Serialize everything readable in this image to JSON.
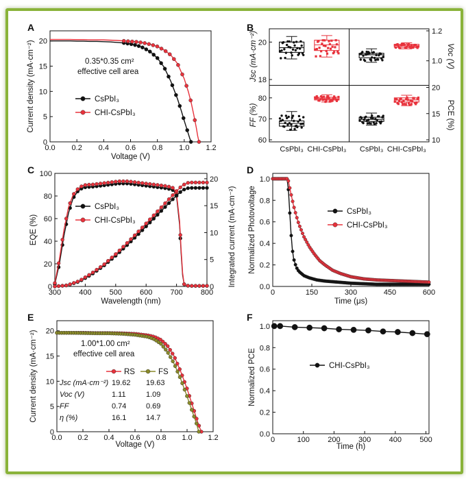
{
  "colors": {
    "black": "#111111",
    "red": "#e8323c",
    "olive": "#8a8a2a",
    "blue": "#2233aa",
    "frame": "#8ab33a"
  },
  "chart_data": [
    {
      "panel": "A",
      "type": "line",
      "xlabel": "Voltage (V)",
      "ylabel": "Current density (mA·cm⁻²)",
      "xlim": [
        0,
        1.2
      ],
      "ylim": [
        0,
        22
      ],
      "xticks": [
        "0.0",
        "0.2",
        "0.4",
        "0.6",
        "0.8",
        "1.0",
        "1.2"
      ],
      "yticks": [
        "0",
        "5",
        "10",
        "15",
        "20"
      ],
      "annotation": [
        "0.35*0.35 cm²",
        "effective cell area"
      ],
      "series": [
        {
          "name": "CsPbI₃",
          "color": "#111111",
          "x": [
            0,
            0.05,
            0.1,
            0.15,
            0.2,
            0.25,
            0.3,
            0.35,
            0.4,
            0.45,
            0.5,
            0.55,
            0.6,
            0.65,
            0.7,
            0.75,
            0.8,
            0.85,
            0.9,
            0.95,
            0.98,
            1.0,
            1.02,
            1.04,
            1.05
          ],
          "y": [
            20.0,
            20.0,
            20.0,
            20.0,
            19.95,
            19.95,
            19.9,
            19.9,
            19.85,
            19.8,
            19.7,
            19.6,
            19.4,
            19.1,
            18.6,
            17.8,
            16.6,
            14.8,
            12.0,
            8.5,
            6.0,
            4.2,
            2.5,
            0.8,
            0
          ]
        },
        {
          "name": "CHI-CsPbI₃",
          "color": "#e8323c",
          "x": [
            0,
            0.05,
            0.1,
            0.15,
            0.2,
            0.25,
            0.3,
            0.35,
            0.4,
            0.45,
            0.5,
            0.55,
            0.6,
            0.65,
            0.7,
            0.75,
            0.8,
            0.85,
            0.9,
            0.95,
            1.0,
            1.03,
            1.05,
            1.07,
            1.09,
            1.1,
            1.11
          ],
          "y": [
            20.3,
            20.3,
            20.3,
            20.3,
            20.25,
            20.25,
            20.2,
            20.2,
            20.2,
            20.15,
            20.1,
            20.0,
            19.9,
            19.8,
            19.6,
            19.3,
            18.9,
            18.2,
            17.2,
            15.5,
            12.5,
            10.0,
            8.0,
            5.5,
            2.8,
            1.2,
            0
          ]
        }
      ]
    },
    {
      "panel": "B",
      "type": "box",
      "groups": [
        "CsPbI₃",
        "CHI-CsPbI₃",
        "CsPbI₃",
        "CHI-CsPbI₃"
      ],
      "subplots": [
        {
          "id": "Jsc",
          "label": "Jsc (mA·cm⁻²)",
          "side": "left",
          "range": [
            17.8,
            20.6
          ],
          "ticks": [
            "18",
            "20"
          ],
          "boxes": [
            {
              "group": "CsPbI₃",
              "min": 19.1,
              "q1": 19.45,
              "median": 19.7,
              "q3": 20.0,
              "max": 20.3
            },
            {
              "group": "CHI-CsPbI₃",
              "min": 19.2,
              "q1": 19.55,
              "median": 19.85,
              "q3": 20.1,
              "max": 20.35
            }
          ]
        },
        {
          "id": "Voc",
          "label": "Voc (V)",
          "side": "right",
          "range": [
            0.85,
            1.2
          ],
          "ticks": [
            "1.0",
            "1.2"
          ],
          "boxes": [
            {
              "group": "CsPbI₃",
              "min": 0.99,
              "q1": 1.02,
              "median": 1.04,
              "q3": 1.05,
              "max": 1.08
            },
            {
              "group": "CHI-CsPbI₃",
              "min": 1.08,
              "q1": 1.09,
              "median": 1.1,
              "q3": 1.11,
              "max": 1.12
            }
          ]
        },
        {
          "id": "FF",
          "label": "FF (%)",
          "side": "left",
          "range": [
            60,
            85
          ],
          "ticks": [
            "60",
            "70",
            "80"
          ],
          "boxes": [
            {
              "group": "CsPbI₃",
              "min": 64.5,
              "q1": 66.5,
              "median": 67.8,
              "q3": 69.0,
              "max": 73.5
            },
            {
              "group": "CHI-CsPbI₃",
              "min": 78.0,
              "q1": 79.0,
              "median": 79.6,
              "q3": 80.3,
              "max": 81.5
            }
          ]
        },
        {
          "id": "PCE",
          "label": "PCE (%)",
          "side": "right",
          "range": [
            10,
            20
          ],
          "ticks": [
            "10",
            "15",
            "20"
          ],
          "boxes": [
            {
              "group": "CsPbI₃",
              "min": 12.8,
              "q1": 13.5,
              "median": 13.9,
              "q3": 14.3,
              "max": 15.1
            },
            {
              "group": "CHI-CsPbI₃",
              "min": 16.5,
              "q1": 17.2,
              "median": 17.6,
              "q3": 18.0,
              "max": 18.5
            }
          ]
        }
      ]
    },
    {
      "panel": "C",
      "type": "line",
      "xlabel": "Wavelength (nm)",
      "ylabel": "EQE (%)",
      "ylabel_right": "Integrated current (mA·cm⁻²)",
      "xlim": [
        300,
        800
      ],
      "ylim": [
        0,
        100
      ],
      "ylim_right": [
        0,
        21
      ],
      "xticks": [
        "300",
        "400",
        "500",
        "600",
        "700",
        "800"
      ],
      "yticks": [
        "0",
        "20",
        "40",
        "60",
        "80",
        "100"
      ],
      "yticks_right": [
        "0",
        "5",
        "10",
        "15",
        "20"
      ],
      "series": [
        {
          "name": "CsPbI₃",
          "color": "#111111",
          "axis": "left",
          "x": [
            300,
            315,
            330,
            345,
            360,
            375,
            390,
            405,
            420,
            450,
            480,
            510,
            540,
            570,
            600,
            630,
            660,
            680,
            690,
            700,
            710,
            715,
            720,
            725,
            730,
            740,
            760,
            800
          ],
          "y": [
            2,
            20,
            45,
            65,
            78,
            84,
            87,
            88,
            88,
            89,
            90,
            91,
            91,
            90,
            89,
            88,
            87,
            86,
            85,
            80,
            55,
            30,
            10,
            2,
            1,
            0.5,
            0.5,
            0.5
          ]
        },
        {
          "name": "CHI-CsPbI₃",
          "color": "#e8323c",
          "axis": "left",
          "x": [
            300,
            315,
            330,
            345,
            360,
            375,
            390,
            405,
            420,
            450,
            480,
            510,
            540,
            570,
            600,
            630,
            660,
            680,
            690,
            700,
            710,
            715,
            720,
            725,
            730,
            740,
            760,
            800
          ],
          "y": [
            3,
            24,
            50,
            70,
            81,
            86,
            89,
            90,
            90,
            91,
            92,
            93,
            93,
            92,
            91,
            90,
            89,
            88,
            87,
            82,
            58,
            33,
            12,
            2,
            1,
            0.5,
            0.5,
            0.5
          ]
        },
        {
          "name": "CsPbI₃ integrated",
          "color": "#111111",
          "axis": "right",
          "x": [
            300,
            340,
            380,
            420,
            460,
            500,
            540,
            580,
            620,
            660,
            700,
            720,
            740,
            760,
            800
          ],
          "y": [
            0,
            0.2,
            0.9,
            2.2,
            3.8,
            5.7,
            7.8,
            10.0,
            12.3,
            14.6,
            16.9,
            17.9,
            18.3,
            18.3,
            18.3
          ]
        },
        {
          "name": "CHI-CsPbI₃ integrated",
          "color": "#e8323c",
          "axis": "right",
          "x": [
            300,
            340,
            380,
            420,
            460,
            500,
            540,
            580,
            620,
            660,
            700,
            720,
            740,
            760,
            800
          ],
          "y": [
            0,
            0.2,
            1.0,
            2.4,
            4.0,
            6.0,
            8.2,
            10.5,
            12.9,
            15.3,
            17.7,
            18.8,
            19.3,
            19.3,
            19.3
          ]
        }
      ]
    },
    {
      "panel": "D",
      "type": "line",
      "xlabel": "Time (μs)",
      "ylabel": "Normalized Photovoltage",
      "xlim": [
        0,
        600
      ],
      "ylim": [
        0,
        1.05
      ],
      "xticks": [
        "0",
        "150",
        "300",
        "450",
        "600"
      ],
      "yticks": [
        "0.0",
        "0.2",
        "0.4",
        "0.6",
        "0.8",
        "1.0"
      ],
      "series": [
        {
          "name": "CsPbI₃",
          "color": "#111111",
          "x": [
            0,
            20,
            40,
            55,
            60,
            65,
            70,
            75,
            80,
            90,
            100,
            120,
            140,
            170,
            200,
            250,
            300,
            400,
            500,
            600
          ],
          "y": [
            1,
            1,
            1,
            1,
            0.9,
            0.7,
            0.5,
            0.35,
            0.26,
            0.18,
            0.14,
            0.1,
            0.08,
            0.06,
            0.05,
            0.04,
            0.03,
            0.02,
            0.02,
            0.02
          ]
        },
        {
          "name": "CHI-CsPbI₃",
          "color": "#e8323c",
          "x": [
            0,
            20,
            40,
            55,
            60,
            70,
            80,
            90,
            100,
            120,
            140,
            160,
            180,
            200,
            230,
            260,
            300,
            350,
            400,
            500,
            600
          ],
          "y": [
            1,
            1,
            1,
            1,
            0.98,
            0.86,
            0.75,
            0.66,
            0.58,
            0.46,
            0.37,
            0.3,
            0.24,
            0.2,
            0.15,
            0.12,
            0.09,
            0.07,
            0.06,
            0.05,
            0.04
          ]
        }
      ]
    },
    {
      "panel": "E",
      "type": "line",
      "xlabel": "Voltage (V)",
      "ylabel": "Current density (mA·cm⁻²)",
      "xlim": [
        0,
        1.2
      ],
      "ylim": [
        0,
        22
      ],
      "xticks": [
        "0.0",
        "0.2",
        "0.4",
        "0.6",
        "0.8",
        "1.0",
        "1.2"
      ],
      "yticks": [
        "0",
        "5",
        "10",
        "15",
        "20"
      ],
      "annotation": [
        "1.00*1.00 cm²",
        "effective cell area"
      ],
      "series": [
        {
          "name": "RS",
          "color": "#e8323c",
          "x": [
            0,
            0.1,
            0.2,
            0.3,
            0.4,
            0.5,
            0.6,
            0.7,
            0.75,
            0.8,
            0.85,
            0.9,
            0.95,
            1.0,
            1.05,
            1.08,
            1.1,
            1.11
          ],
          "y": [
            19.6,
            19.6,
            19.6,
            19.55,
            19.55,
            19.5,
            19.4,
            19.1,
            18.8,
            18.2,
            17.0,
            15.0,
            12.0,
            8.5,
            4.5,
            2.0,
            0.6,
            0
          ]
        },
        {
          "name": "FS",
          "color": "#8a8a2a",
          "x": [
            0,
            0.1,
            0.2,
            0.3,
            0.4,
            0.5,
            0.6,
            0.7,
            0.75,
            0.8,
            0.85,
            0.9,
            0.95,
            1.0,
            1.04,
            1.07,
            1.09
          ],
          "y": [
            19.6,
            19.6,
            19.55,
            19.5,
            19.5,
            19.4,
            19.2,
            18.8,
            18.3,
            17.4,
            15.8,
            13.5,
            10.5,
            7.0,
            4.0,
            1.8,
            0
          ]
        }
      ],
      "table": {
        "headers": [
          "RS",
          "FS"
        ],
        "rows": [
          {
            "label": "Jsc (mA·cm⁻²)",
            "rs": "19.62",
            "fs": "19.63"
          },
          {
            "label": "Voc (V)",
            "rs": "1.11",
            "fs": "1.09"
          },
          {
            "label": "FF",
            "rs": "0.74",
            "fs": "0.69"
          },
          {
            "label": "η (%)",
            "rs": "16.1",
            "fs": "14.7"
          }
        ]
      }
    },
    {
      "panel": "F",
      "type": "line",
      "xlabel": "Time (h)",
      "ylabel": "Normalized PCE",
      "xlim": [
        0,
        510
      ],
      "ylim": [
        0,
        1.05
      ],
      "xticks": [
        "0",
        "100",
        "200",
        "300",
        "400",
        "500"
      ],
      "yticks": [
        "0.0",
        "0.2",
        "0.4",
        "0.6",
        "0.8",
        "1.0"
      ],
      "series": [
        {
          "name": "CHI-CsPbI₃",
          "color": "#111111",
          "x": [
            0,
            24,
            72,
            120,
            168,
            216,
            264,
            312,
            360,
            408,
            456,
            504
          ],
          "y": [
            1.0,
            1.0,
            0.99,
            0.985,
            0.98,
            0.97,
            0.965,
            0.96,
            0.95,
            0.945,
            0.935,
            0.925
          ]
        }
      ]
    }
  ]
}
